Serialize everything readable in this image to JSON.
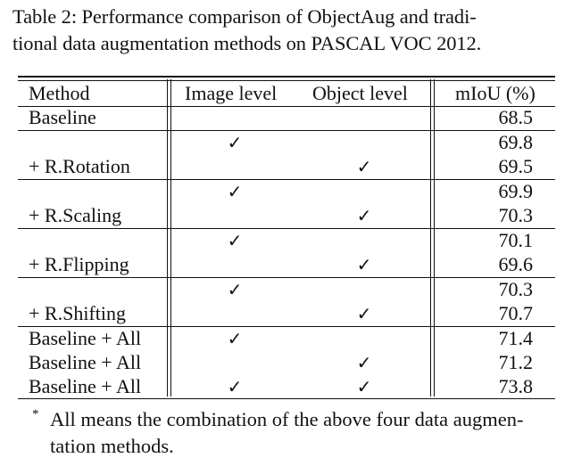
{
  "caption": {
    "line1": "Table 2: Performance comparison of ObjectAug and tradi-",
    "line2": "tional data augmentation methods on PASCAL VOC 2012."
  },
  "table": {
    "headers": {
      "method": "Method",
      "image_level": "Image level",
      "object_level": "Object level",
      "miou": "mIoU (%)"
    },
    "check_symbol": "✓",
    "rows": [
      {
        "method": "Baseline",
        "image": false,
        "object": false,
        "miou": "68.5"
      },
      {
        "method": "",
        "image": true,
        "object": false,
        "miou": "69.8"
      },
      {
        "method": "+ R.Rotation",
        "image": false,
        "object": true,
        "miou": "69.5"
      },
      {
        "method": "",
        "image": true,
        "object": false,
        "miou": "69.9"
      },
      {
        "method": "+ R.Scaling",
        "image": false,
        "object": true,
        "miou": "70.3"
      },
      {
        "method": "",
        "image": true,
        "object": false,
        "miou": "70.1"
      },
      {
        "method": "+ R.Flipping",
        "image": false,
        "object": true,
        "miou": "69.6"
      },
      {
        "method": "",
        "image": true,
        "object": false,
        "miou": "70.3"
      },
      {
        "method": "+ R.Shifting",
        "image": false,
        "object": true,
        "miou": "70.7"
      },
      {
        "method": "Baseline + All",
        "image": true,
        "object": false,
        "miou": "71.4"
      },
      {
        "method": "Baseline + All",
        "image": false,
        "object": true,
        "miou": "71.2"
      },
      {
        "method": "Baseline + All",
        "image": true,
        "object": true,
        "miou": "73.8"
      }
    ]
  },
  "footnote": {
    "mark": "*",
    "line1": "All means the combination of the above four data augmen-",
    "line2": "tation methods."
  }
}
